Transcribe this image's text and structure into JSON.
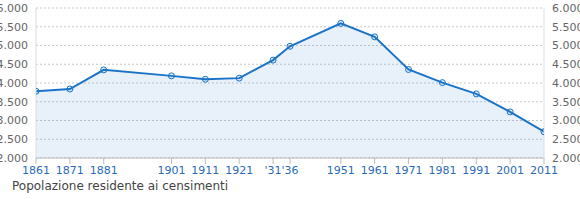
{
  "chart_data": {
    "type": "area",
    "title": "Popolazione residente ai censimenti",
    "x": [
      1861,
      1871,
      1881,
      1901,
      1911,
      1921,
      1931,
      1936,
      1951,
      1961,
      1971,
      1981,
      1991,
      2001,
      2011
    ],
    "values": [
      3780,
      3840,
      4350,
      4190,
      4100,
      4130,
      4610,
      4980,
      5590,
      5230,
      4360,
      4010,
      3710,
      3230,
      2700
    ],
    "color": "#1a73c8",
    "marker": "circle",
    "xlim": [
      1861,
      2011
    ],
    "xticks": [
      1861,
      1871,
      1881,
      1901,
      1911,
      1921,
      {
        "value": 1931,
        "label": "'31"
      },
      {
        "value": 1936,
        "label": "'36"
      },
      1951,
      1961,
      1971,
      1981,
      1991,
      2001,
      2011
    ],
    "ylim": [
      2000,
      6000
    ],
    "yticks": [
      {
        "value": 2000,
        "label": "2.000"
      },
      {
        "value": 2500,
        "label": "2.500"
      },
      {
        "value": 3000,
        "label": "3.000"
      },
      {
        "value": 3500,
        "label": "3.500"
      },
      {
        "value": 4000,
        "label": "4.000"
      },
      {
        "value": 4500,
        "label": "4.500"
      },
      {
        "value": 5000,
        "label": "5.000"
      },
      {
        "value": 5500,
        "label": "5.500"
      },
      {
        "value": 6000,
        "label": "6.000"
      }
    ],
    "grid": true
  }
}
